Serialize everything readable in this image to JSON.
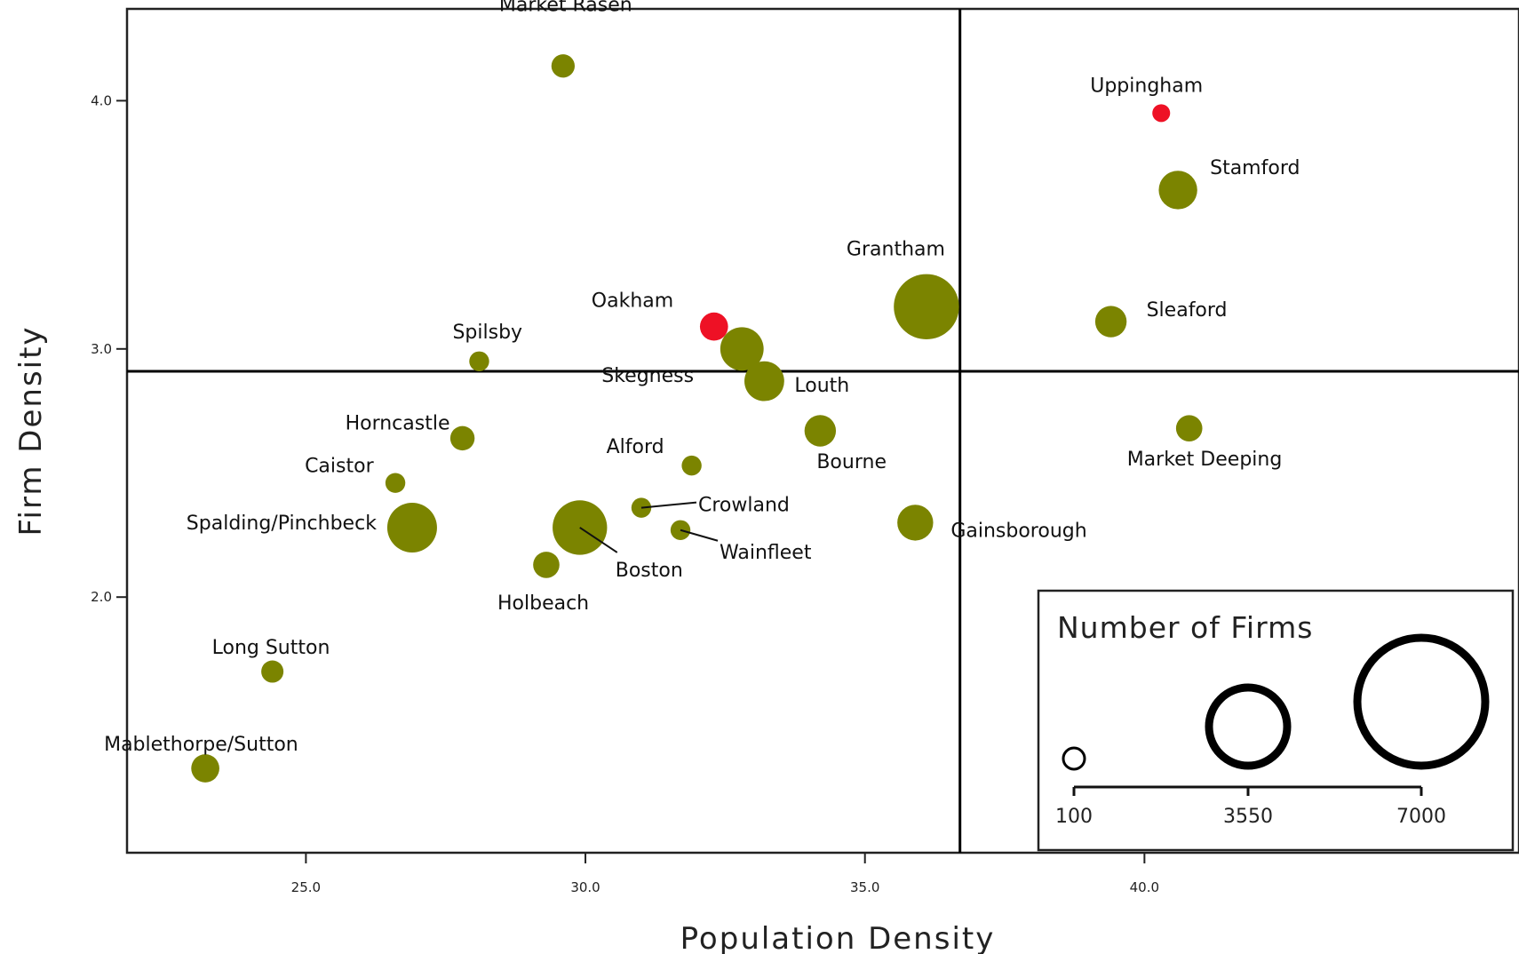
{
  "chart_data": {
    "type": "scatter",
    "xlabel": "Population Density",
    "ylabel": "Firm Density",
    "xlim": [
      21.8,
      46.7
    ],
    "ylim": [
      0.97,
      4.37
    ],
    "x_ticks": [
      25.0,
      30.0,
      35.0,
      40.0
    ],
    "x_tick_labels": [
      "25.0",
      "30.0",
      "35.0",
      "40.0"
    ],
    "y_ticks": [
      2.0,
      3.0,
      4.0
    ],
    "y_tick_labels": [
      "2.0",
      "3.0",
      "4.0"
    ],
    "reference_lines": {
      "x": 36.7,
      "y": 2.91
    },
    "grid": false,
    "size_encoding": "Number of Firms",
    "colors": {
      "default": "#7b8400",
      "highlight": "#ee1125",
      "axis": "#000000"
    },
    "points": [
      {
        "label": "Market Rasen",
        "x": 29.6,
        "y": 4.14,
        "size": 550,
        "color": "#7b8400"
      },
      {
        "label": "Uppingham",
        "x": 40.3,
        "y": 3.95,
        "size": 320,
        "color": "#ee1125"
      },
      {
        "label": "Stamford",
        "x": 40.6,
        "y": 3.64,
        "size": 1500,
        "color": "#7b8400"
      },
      {
        "label": "Grantham",
        "x": 36.1,
        "y": 3.17,
        "size": 4300,
        "color": "#7b8400"
      },
      {
        "label": "Sleaford",
        "x": 39.4,
        "y": 3.11,
        "size": 1000,
        "color": "#7b8400"
      },
      {
        "label": "Oakham",
        "x": 32.3,
        "y": 3.09,
        "size": 800,
        "color": "#ee1125"
      },
      {
        "label": "Skegness",
        "x": 32.8,
        "y": 3.0,
        "size": 1900,
        "color": "#7b8400"
      },
      {
        "label": "Spilsby",
        "x": 28.1,
        "y": 2.95,
        "size": 400,
        "color": "#7b8400"
      },
      {
        "label": "Louth",
        "x": 33.2,
        "y": 2.87,
        "size": 1600,
        "color": "#7b8400"
      },
      {
        "label": "Market Deeping",
        "x": 40.8,
        "y": 2.68,
        "size": 700,
        "color": "#7b8400"
      },
      {
        "label": "Bourne",
        "x": 34.2,
        "y": 2.67,
        "size": 1000,
        "color": "#7b8400"
      },
      {
        "label": "Horncastle",
        "x": 27.8,
        "y": 2.64,
        "size": 600,
        "color": "#7b8400"
      },
      {
        "label": "Alford",
        "x": 31.9,
        "y": 2.53,
        "size": 400,
        "color": "#7b8400"
      },
      {
        "label": "Caistor",
        "x": 26.6,
        "y": 2.46,
        "size": 400,
        "color": "#7b8400"
      },
      {
        "label": "Crowland",
        "x": 31.0,
        "y": 2.36,
        "size": 400,
        "color": "#7b8400"
      },
      {
        "label": "Gainsborough",
        "x": 35.9,
        "y": 2.3,
        "size": 1300,
        "color": "#7b8400"
      },
      {
        "label": "Spalding/Pinchbeck",
        "x": 26.9,
        "y": 2.28,
        "size": 2500,
        "color": "#7b8400"
      },
      {
        "label": "Boston",
        "x": 29.9,
        "y": 2.28,
        "size": 3000,
        "color": "#7b8400"
      },
      {
        "label": "Wainfleet",
        "x": 31.7,
        "y": 2.27,
        "size": 400,
        "color": "#7b8400"
      },
      {
        "label": "Holbeach",
        "x": 29.3,
        "y": 2.13,
        "size": 700,
        "color": "#7b8400"
      },
      {
        "label": "Long Sutton",
        "x": 24.4,
        "y": 1.7,
        "size": 500,
        "color": "#7b8400"
      },
      {
        "label": "Mablethorpe/Sutton",
        "x": 23.2,
        "y": 1.31,
        "size": 800,
        "color": "#7b8400"
      }
    ],
    "legend": {
      "title": "Number of Firms",
      "values": [
        100,
        3550,
        7000
      ],
      "tick_labels": [
        "100",
        "3550",
        "7000"
      ],
      "placement": "bottom-right"
    }
  }
}
